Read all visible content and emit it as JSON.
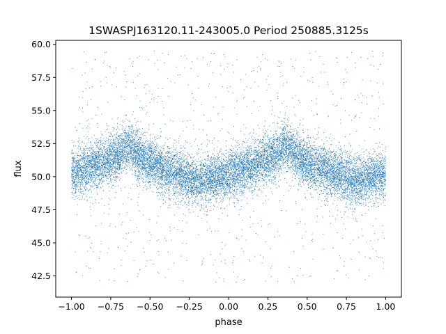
{
  "chart_data": {
    "type": "scatter",
    "title": "1SWASPJ163120.11-243005.0 Period 250885.3125s",
    "xlabel": "phase",
    "ylabel": "flux",
    "xlim": [
      -1.1,
      1.1
    ],
    "ylim": [
      40.9,
      60.3
    ],
    "xticks": [
      -1.0,
      -0.75,
      -0.5,
      -0.25,
      0.0,
      0.25,
      0.5,
      0.75,
      1.0
    ],
    "xtick_labels": [
      "−1.00",
      "−0.75",
      "−0.50",
      "−0.25",
      "0.00",
      "0.25",
      "0.50",
      "0.75",
      "1.00"
    ],
    "yticks": [
      42.5,
      45.0,
      47.5,
      50.0,
      52.5,
      55.0,
      57.5,
      60.0
    ],
    "ytick_labels": [
      "42.5",
      "45.0",
      "47.5",
      "50.0",
      "52.5",
      "55.0",
      "57.5",
      "60.0"
    ],
    "grid": false,
    "point_color": "#1f77b4",
    "series": [
      {
        "phase_profile": [
          {
            "x": -1.0,
            "y": 50.2
          },
          {
            "x": -0.9,
            "y": 50.6
          },
          {
            "x": -0.8,
            "y": 51.1
          },
          {
            "x": -0.7,
            "y": 51.6
          },
          {
            "x": -0.64,
            "y": 52.4
          },
          {
            "x": -0.55,
            "y": 51.4
          },
          {
            "x": -0.45,
            "y": 50.7
          },
          {
            "x": -0.35,
            "y": 50.3
          },
          {
            "x": -0.25,
            "y": 49.9
          },
          {
            "x": -0.2,
            "y": 49.6
          },
          {
            "x": -0.1,
            "y": 49.9
          },
          {
            "x": 0.0,
            "y": 50.2
          },
          {
            "x": 0.1,
            "y": 50.6
          },
          {
            "x": 0.2,
            "y": 51.1
          },
          {
            "x": 0.3,
            "y": 51.6
          },
          {
            "x": 0.36,
            "y": 52.4
          },
          {
            "x": 0.45,
            "y": 51.4
          },
          {
            "x": 0.55,
            "y": 50.7
          },
          {
            "x": 0.65,
            "y": 50.3
          },
          {
            "x": 0.75,
            "y": 49.9
          },
          {
            "x": 0.8,
            "y": 49.6
          },
          {
            "x": 0.9,
            "y": 49.9
          },
          {
            "x": 1.0,
            "y": 50.2
          }
        ],
        "scatter_sigma": 0.9,
        "n_core_points": 14000,
        "n_outlier_points": 900
      }
    ]
  }
}
